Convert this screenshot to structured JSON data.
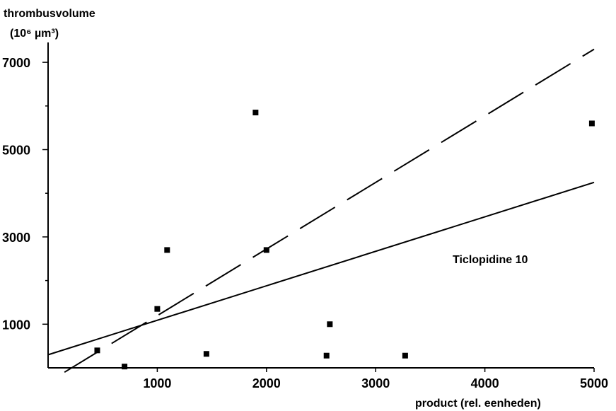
{
  "chart_data": {
    "type": "scatter",
    "ylabel_line1": "thrombusvolume",
    "ylabel_line2": "(10⁶ µm³)",
    "xlabel": "product (rel. eenheden)",
    "xlim": [
      0,
      5000
    ],
    "ylim": [
      0,
      7000
    ],
    "x_ticks": [
      1000,
      2000,
      3000,
      4000,
      5000
    ],
    "x_tick_labels": [
      "1000",
      "2000",
      "3000",
      "4000",
      "5000"
    ],
    "y_ticks": [
      1000,
      3000,
      5000,
      7000
    ],
    "y_tick_labels": [
      "1000",
      "3000",
      "5000",
      "7000"
    ],
    "annotation": "Ticlopidine 10",
    "series": [
      {
        "points": [
          {
            "x": 450,
            "y": 400
          },
          {
            "x": 700,
            "y": 30
          },
          {
            "x": 1000,
            "y": 1350
          },
          {
            "x": 1090,
            "y": 2700
          },
          {
            "x": 1450,
            "y": 320
          },
          {
            "x": 1900,
            "y": 5850
          },
          {
            "x": 2000,
            "y": 2700
          },
          {
            "x": 2550,
            "y": 280
          },
          {
            "x": 2580,
            "y": 1000
          },
          {
            "x": 3270,
            "y": 280
          },
          {
            "x": 4980,
            "y": 5600
          }
        ]
      }
    ],
    "lines": [
      {
        "style": "solid",
        "x": [
          0,
          5000
        ],
        "y": [
          300,
          4250
        ]
      },
      {
        "style": "dashed",
        "x": [
          150,
          5000
        ],
        "y": [
          -100,
          7300
        ]
      }
    ]
  }
}
